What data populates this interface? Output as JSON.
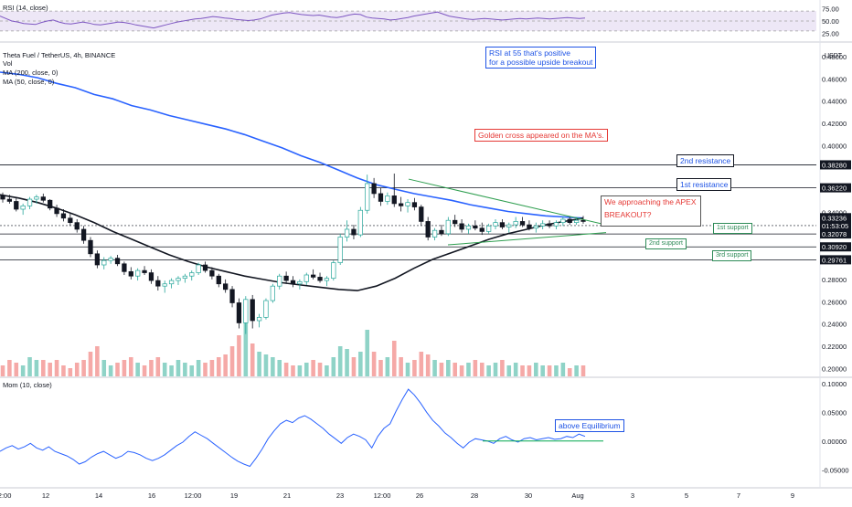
{
  "rsi_panel": {
    "label": "RSI (14, close)",
    "ticks": [
      "75.00",
      "50.00",
      "25.00"
    ],
    "tick_values": [
      75,
      50,
      25
    ],
    "band": [
      30,
      70
    ],
    "min": 15,
    "max": 85,
    "values": [
      60,
      55,
      50,
      48,
      45,
      44,
      43,
      47,
      50,
      52,
      48,
      45,
      44,
      46,
      48,
      46,
      43,
      42,
      44,
      46,
      48,
      47,
      45,
      42,
      40,
      38,
      36,
      39,
      42,
      45,
      48,
      50,
      52,
      54,
      55,
      57,
      59,
      58,
      56,
      55,
      53,
      52,
      51,
      52,
      54,
      58,
      62,
      64,
      66,
      67,
      65,
      63,
      62,
      61,
      62,
      60,
      58,
      57,
      59,
      62,
      64,
      63,
      58,
      56,
      55,
      54,
      52,
      53,
      55,
      57,
      60,
      62,
      64,
      66,
      68,
      64,
      60,
      58,
      56,
      54,
      53,
      54,
      55,
      54,
      53,
      52,
      53,
      54,
      55,
      54,
      55,
      56,
      55,
      54,
      55,
      56,
      57,
      56,
      55,
      56
    ]
  },
  "main_panel": {
    "symbol": "Theta Fuel / TetherUS, 4h, BINANCE",
    "vol_label": "Vol",
    "ma200_label": "MA (200, close, 0)",
    "ma50_label": "MA (50, close, 0)",
    "currency": "USDT",
    "y_ticks": [
      "0.48000",
      "0.46000",
      "0.44000",
      "0.42000",
      "0.40000",
      "0.34000",
      "0.28000",
      "0.26000",
      "0.24000",
      "0.22000",
      "0.20000"
    ],
    "y_tick_values": [
      0.48,
      0.46,
      0.44,
      0.42,
      0.4,
      0.34,
      0.28,
      0.26,
      0.24,
      0.22,
      0.2
    ],
    "y_min": 0.193,
    "y_max": 0.484,
    "price_tags": [
      {
        "label": "0.38280",
        "value": 0.3828
      },
      {
        "label": "0.36220",
        "value": 0.3622
      },
      {
        "label": "0.33236",
        "value": 0.3354
      },
      {
        "label": "01:53:05",
        "value": 0.3283
      },
      {
        "label": "0.32078",
        "value": 0.3208
      },
      {
        "label": "0.30920",
        "value": 0.3092
      },
      {
        "label": "0.29761",
        "value": 0.2976
      }
    ],
    "annotations": {
      "rsi_note_line1": "RSI at 55 that's positive",
      "rsi_note_line2": "for a possible upside breakout",
      "golden_cross": "Golden cross appeared on the MA's.",
      "resistance_2": "2nd resistance",
      "resistance_1": "1st resistance",
      "apex_line1": "We approaching the APEX",
      "apex_line2": "BREAKOUT?",
      "support_1": "1st support",
      "support_2": "2nd support",
      "support_3": "3rd support"
    },
    "colors": {
      "up": "#26a69a",
      "down": "#ef5350",
      "ma200": "#2962ff",
      "ma50": "#131722",
      "triangle": "#2e9e4f",
      "note_blue": "#1e53e5",
      "note_red": "#e53935",
      "support_green": "#2e8b57"
    }
  },
  "chart_data": {
    "type": "candlestick",
    "symbol": "Theta Fuel / TetherUS",
    "timeframe": "4h",
    "exchange": "BINANCE",
    "x_axis_labels": [
      "12:00",
      "12",
      "14",
      "16",
      "12:00",
      "19",
      "21",
      "23",
      "12:00",
      "26",
      "28",
      "30",
      "Aug",
      "3",
      "5",
      "7",
      "9"
    ],
    "ohlc": [
      [
        0.355,
        0.358,
        0.349,
        0.352
      ],
      [
        0.352,
        0.356,
        0.348,
        0.35
      ],
      [
        0.35,
        0.353,
        0.341,
        0.343
      ],
      [
        0.343,
        0.348,
        0.338,
        0.346
      ],
      [
        0.346,
        0.354,
        0.343,
        0.352
      ],
      [
        0.352,
        0.356,
        0.348,
        0.354
      ],
      [
        0.354,
        0.357,
        0.349,
        0.351
      ],
      [
        0.351,
        0.352,
        0.342,
        0.344
      ],
      [
        0.344,
        0.347,
        0.336,
        0.339
      ],
      [
        0.339,
        0.343,
        0.332,
        0.335
      ],
      [
        0.335,
        0.339,
        0.328,
        0.331
      ],
      [
        0.331,
        0.334,
        0.322,
        0.325
      ],
      [
        0.325,
        0.328,
        0.312,
        0.315
      ],
      [
        0.315,
        0.318,
        0.3,
        0.303
      ],
      [
        0.303,
        0.306,
        0.29,
        0.293
      ],
      [
        0.293,
        0.3,
        0.289,
        0.297
      ],
      [
        0.297,
        0.301,
        0.294,
        0.299
      ],
      [
        0.299,
        0.302,
        0.292,
        0.294
      ],
      [
        0.294,
        0.296,
        0.284,
        0.287
      ],
      [
        0.287,
        0.291,
        0.28,
        0.283
      ],
      [
        0.283,
        0.29,
        0.279,
        0.288
      ],
      [
        0.288,
        0.292,
        0.284,
        0.286
      ],
      [
        0.286,
        0.289,
        0.276,
        0.279
      ],
      [
        0.279,
        0.283,
        0.27,
        0.274
      ],
      [
        0.274,
        0.279,
        0.268,
        0.276
      ],
      [
        0.276,
        0.281,
        0.272,
        0.279
      ],
      [
        0.279,
        0.283,
        0.275,
        0.281
      ],
      [
        0.281,
        0.285,
        0.277,
        0.283
      ],
      [
        0.283,
        0.288,
        0.279,
        0.286
      ],
      [
        0.286,
        0.295,
        0.284,
        0.293
      ],
      [
        0.293,
        0.296,
        0.286,
        0.288
      ],
      [
        0.288,
        0.291,
        0.28,
        0.283
      ],
      [
        0.283,
        0.285,
        0.273,
        0.276
      ],
      [
        0.276,
        0.28,
        0.268,
        0.271
      ],
      [
        0.271,
        0.274,
        0.255,
        0.259
      ],
      [
        0.259,
        0.263,
        0.236,
        0.241
      ],
      [
        0.241,
        0.265,
        0.231,
        0.262
      ],
      [
        0.262,
        0.266,
        0.236,
        0.243
      ],
      [
        0.243,
        0.249,
        0.237,
        0.246
      ],
      [
        0.246,
        0.263,
        0.244,
        0.261
      ],
      [
        0.261,
        0.276,
        0.259,
        0.274
      ],
      [
        0.274,
        0.285,
        0.271,
        0.283
      ],
      [
        0.283,
        0.287,
        0.276,
        0.279
      ],
      [
        0.279,
        0.283,
        0.273,
        0.276
      ],
      [
        0.276,
        0.28,
        0.271,
        0.278
      ],
      [
        0.278,
        0.286,
        0.275,
        0.284
      ],
      [
        0.284,
        0.289,
        0.28,
        0.282
      ],
      [
        0.282,
        0.286,
        0.277,
        0.279
      ],
      [
        0.279,
        0.283,
        0.274,
        0.281
      ],
      [
        0.281,
        0.297,
        0.279,
        0.295
      ],
      [
        0.295,
        0.321,
        0.293,
        0.318
      ],
      [
        0.318,
        0.333,
        0.314,
        0.325
      ],
      [
        0.325,
        0.329,
        0.316,
        0.32
      ],
      [
        0.32,
        0.345,
        0.318,
        0.342
      ],
      [
        0.342,
        0.374,
        0.339,
        0.366
      ],
      [
        0.366,
        0.371,
        0.353,
        0.357
      ],
      [
        0.357,
        0.362,
        0.346,
        0.35
      ],
      [
        0.35,
        0.358,
        0.347,
        0.355
      ],
      [
        0.355,
        0.375,
        0.345,
        0.348
      ],
      [
        0.348,
        0.354,
        0.341,
        0.346
      ],
      [
        0.346,
        0.352,
        0.34,
        0.349
      ],
      [
        0.349,
        0.353,
        0.342,
        0.345
      ],
      [
        0.345,
        0.347,
        0.328,
        0.332
      ],
      [
        0.332,
        0.336,
        0.315,
        0.318
      ],
      [
        0.318,
        0.326,
        0.315,
        0.324
      ],
      [
        0.324,
        0.329,
        0.319,
        0.321
      ],
      [
        0.321,
        0.336,
        0.319,
        0.333
      ],
      [
        0.333,
        0.338,
        0.327,
        0.33
      ],
      [
        0.33,
        0.334,
        0.322,
        0.325
      ],
      [
        0.325,
        0.33,
        0.321,
        0.328
      ],
      [
        0.328,
        0.333,
        0.324,
        0.326
      ],
      [
        0.326,
        0.331,
        0.32,
        0.323
      ],
      [
        0.323,
        0.33,
        0.321,
        0.328
      ],
      [
        0.328,
        0.334,
        0.325,
        0.331
      ],
      [
        0.331,
        0.334,
        0.325,
        0.327
      ],
      [
        0.327,
        0.331,
        0.322,
        0.329
      ],
      [
        0.329,
        0.336,
        0.326,
        0.332
      ],
      [
        0.332,
        0.336,
        0.327,
        0.329
      ],
      [
        0.329,
        0.333,
        0.324,
        0.326
      ],
      [
        0.326,
        0.331,
        0.322,
        0.328
      ],
      [
        0.328,
        0.333,
        0.325,
        0.33
      ],
      [
        0.33,
        0.333,
        0.326,
        0.328
      ],
      [
        0.328,
        0.333,
        0.325,
        0.331
      ],
      [
        0.331,
        0.336,
        0.328,
        0.334
      ],
      [
        0.334,
        0.336,
        0.329,
        0.331
      ],
      [
        0.331,
        0.336,
        0.329,
        0.333
      ],
      [
        0.333,
        0.337,
        0.33,
        0.332
      ]
    ],
    "volume_relative": [
      0.2,
      0.3,
      0.25,
      0.2,
      0.35,
      0.3,
      0.3,
      0.25,
      0.3,
      0.2,
      0.15,
      0.25,
      0.3,
      0.45,
      0.55,
      0.3,
      0.2,
      0.25,
      0.3,
      0.35,
      0.25,
      0.2,
      0.3,
      0.35,
      0.25,
      0.2,
      0.3,
      0.25,
      0.2,
      0.3,
      0.25,
      0.3,
      0.35,
      0.4,
      0.55,
      0.75,
      1.0,
      0.6,
      0.45,
      0.4,
      0.35,
      0.3,
      0.25,
      0.2,
      0.2,
      0.25,
      0.3,
      0.25,
      0.2,
      0.35,
      0.55,
      0.5,
      0.35,
      0.45,
      0.85,
      0.45,
      0.3,
      0.35,
      0.65,
      0.35,
      0.25,
      0.3,
      0.45,
      0.4,
      0.3,
      0.25,
      0.3,
      0.25,
      0.2,
      0.25,
      0.3,
      0.25,
      0.2,
      0.25,
      0.3,
      0.2,
      0.25,
      0.2,
      0.2,
      0.25,
      0.2,
      0.2,
      0.2,
      0.25,
      0.15,
      0.2,
      0.2
    ],
    "ma200": [
      0.466,
      0.464,
      0.461,
      0.456,
      0.452,
      0.446,
      0.442,
      0.436,
      0.432,
      0.427,
      0.423,
      0.419,
      0.415,
      0.41,
      0.404,
      0.398,
      0.391,
      0.385,
      0.378,
      0.371,
      0.365,
      0.361,
      0.357,
      0.354,
      0.351,
      0.347,
      0.344,
      0.341,
      0.339,
      0.337,
      0.336,
      0.335
    ],
    "ma50": [
      0.356,
      0.353,
      0.349,
      0.344,
      0.338,
      0.331,
      0.323,
      0.316,
      0.309,
      0.302,
      0.296,
      0.291,
      0.287,
      0.283,
      0.28,
      0.277,
      0.275,
      0.273,
      0.271,
      0.27,
      0.274,
      0.281,
      0.29,
      0.298,
      0.304,
      0.31,
      0.316,
      0.321,
      0.325,
      0.329,
      0.332,
      0.335
    ]
  },
  "mom_panel": {
    "label": "Mom (10, close)",
    "ticks": [
      "0.10000",
      "0.05000",
      "0.00000",
      "-0.05000"
    ],
    "tick_values": [
      0.1,
      0.05,
      0.0,
      -0.05
    ],
    "min": -0.075,
    "max": 0.106,
    "note": "above Equilibrium",
    "values": [
      -0.018,
      -0.012,
      -0.008,
      -0.014,
      -0.01,
      -0.004,
      -0.012,
      -0.016,
      -0.01,
      -0.018,
      -0.022,
      -0.026,
      -0.032,
      -0.04,
      -0.036,
      -0.028,
      -0.022,
      -0.018,
      -0.024,
      -0.03,
      -0.026,
      -0.018,
      -0.02,
      -0.024,
      -0.03,
      -0.034,
      -0.03,
      -0.024,
      -0.016,
      -0.008,
      -0.002,
      0.008,
      0.016,
      0.01,
      0.004,
      -0.004,
      -0.012,
      -0.02,
      -0.028,
      -0.035,
      -0.04,
      -0.044,
      -0.03,
      -0.014,
      0.004,
      0.018,
      0.03,
      0.036,
      0.032,
      0.04,
      0.044,
      0.038,
      0.03,
      0.022,
      0.012,
      0.004,
      -0.004,
      0.006,
      0.012,
      0.008,
      0.002,
      -0.012,
      0.008,
      0.022,
      0.03,
      0.052,
      0.072,
      0.09,
      0.08,
      0.066,
      0.05,
      0.036,
      0.026,
      0.014,
      0.006,
      -0.004,
      -0.012,
      -0.002,
      0.004,
      0.002,
      0.0,
      -0.004,
      0.004,
      0.008,
      0.002,
      -0.002,
      0.004,
      0.006,
      0.002,
      0.004,
      0.006,
      0.003,
      0.004,
      0.008,
      0.006,
      0.012,
      0.008
    ]
  },
  "x_axis_labels": [
    "12:00",
    "12",
    "14",
    "16",
    "12:00",
    "19",
    "21",
    "23",
    "12:00",
    "26",
    "28",
    "30",
    "Aug",
    "3",
    "5",
    "7",
    "9"
  ]
}
